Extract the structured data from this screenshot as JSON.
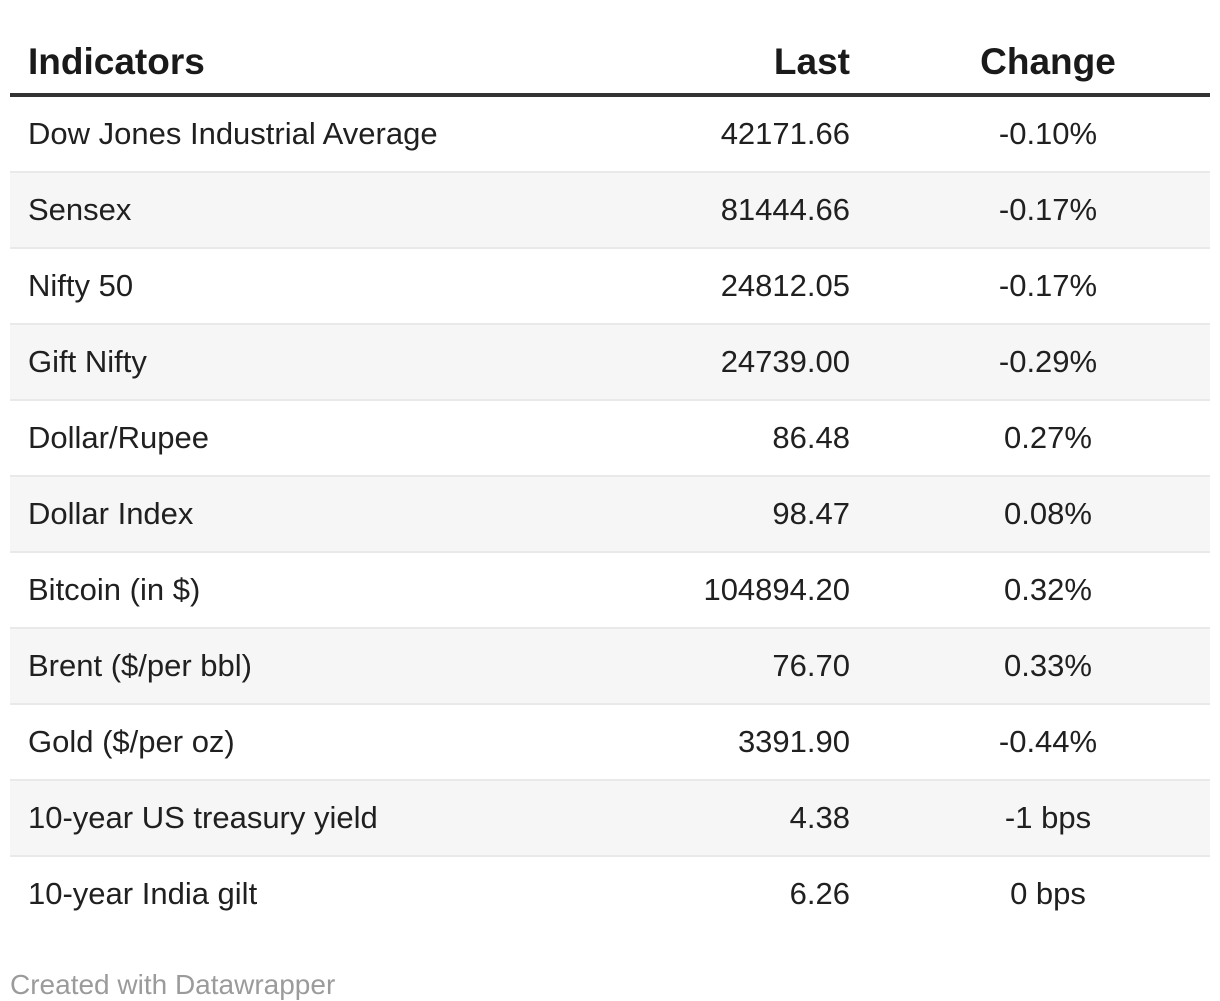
{
  "chart_data": {
    "type": "table",
    "columns": [
      "Indicators",
      "Last",
      "Change"
    ],
    "rows": [
      [
        "Dow Jones Industrial Average",
        "42171.66",
        "-0.10%"
      ],
      [
        "Sensex",
        "81444.66",
        "-0.17%"
      ],
      [
        "Nifty 50",
        "24812.05",
        "-0.17%"
      ],
      [
        "Gift Nifty",
        "24739.00",
        "-0.29%"
      ],
      [
        "Dollar/Rupee",
        "86.48",
        "0.27%"
      ],
      [
        "Dollar Index",
        "98.47",
        "0.08%"
      ],
      [
        "Bitcoin (in $)",
        "104894.20",
        "0.32%"
      ],
      [
        "Brent ($/per bbl)",
        "76.70",
        "0.33%"
      ],
      [
        "Gold ($/per oz)",
        "3391.90",
        "-0.44%"
      ],
      [
        "10-year US treasury yield",
        "4.38",
        "-1 bps"
      ],
      [
        "10-year India gilt",
        "6.26",
        "0 bps"
      ]
    ],
    "column_alignments": [
      "left",
      "right",
      "center"
    ],
    "striped_rows": true,
    "legend_position": "none",
    "grid": "row-dividers"
  },
  "footer": {
    "attribution": "Created with Datawrapper"
  },
  "colors": {
    "header_rule": "#333333",
    "row_stripe": "#f6f6f6",
    "row_divider": "#e9e9e9",
    "text": "#202020",
    "footer_text": "#9b9b9b",
    "background": "#ffffff"
  }
}
